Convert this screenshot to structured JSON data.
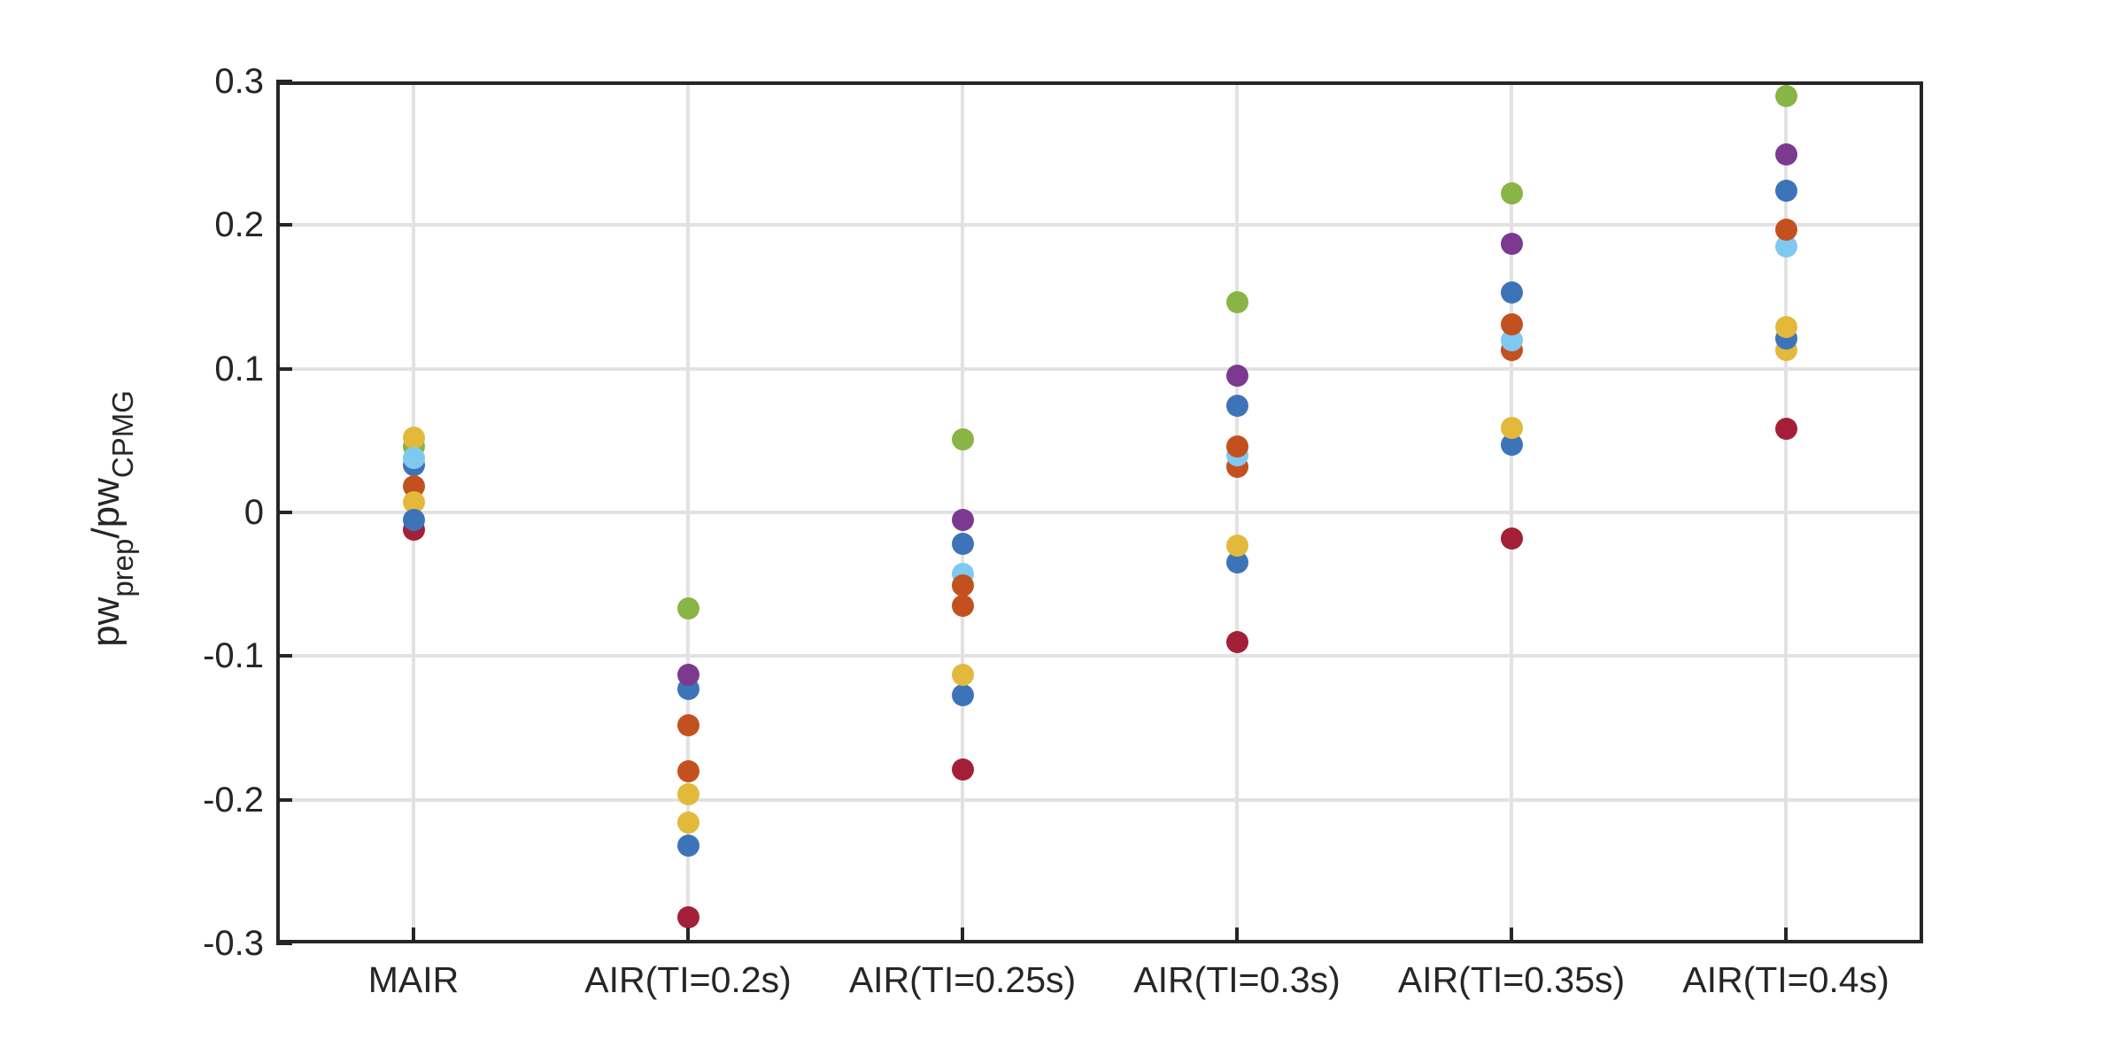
{
  "chart_data": {
    "type": "scatter",
    "title": "",
    "xlabel": "",
    "ylabel_parts": {
      "base1": "pw",
      "sub1": "prep",
      "base2": "/pw",
      "sub2": "CPMG"
    },
    "categories": [
      "MAIR",
      "AIR(TI=0.2s)",
      "AIR(TI=0.25s)",
      "AIR(TI=0.3s)",
      "AIR(TI=0.35s)",
      "AIR(TI=0.4s)"
    ],
    "y_ticks": [
      "0.3",
      "0.2",
      "0.1",
      "0",
      "-0.1",
      "-0.2",
      "-0.3"
    ],
    "ylim": [
      -0.3,
      0.3
    ],
    "grid": true,
    "legend": "none",
    "marker": "filled-circle",
    "colors": {
      "background": "#FFFFFF",
      "axis": "#262626",
      "grid": "#E2E2E2",
      "palette": {
        "blue": "#3D74B9",
        "orange": "#C3511F",
        "yellow": "#E3B93C",
        "purple": "#7B3A90",
        "green": "#89B446",
        "lightblue": "#7FC9F0",
        "maroon": "#A42039"
      }
    },
    "columns": [
      {
        "category": "MAIR",
        "points": [
          {
            "color": "green",
            "value": 0.046
          },
          {
            "color": "blue",
            "value": 0.033
          },
          {
            "color": "maroon",
            "value": -0.012
          },
          {
            "color": "orange",
            "value": 0.018
          },
          {
            "color": "yellow",
            "value": 0.007
          },
          {
            "color": "yellow",
            "value": 0.052
          },
          {
            "color": "lightblue",
            "value": 0.038
          },
          {
            "color": "blue",
            "value": -0.005
          }
        ]
      },
      {
        "category": "AIR(TI=0.2s)",
        "points": [
          {
            "color": "blue",
            "value": -0.123
          },
          {
            "color": "orange",
            "value": -0.148
          },
          {
            "color": "orange",
            "value": -0.18
          },
          {
            "color": "yellow",
            "value": -0.196
          },
          {
            "color": "yellow",
            "value": -0.216
          },
          {
            "color": "blue",
            "value": -0.232
          },
          {
            "color": "maroon",
            "value": -0.282
          },
          {
            "color": "purple",
            "value": -0.113
          },
          {
            "color": "green",
            "value": -0.067
          }
        ]
      },
      {
        "category": "AIR(TI=0.25s)",
        "points": [
          {
            "color": "lightblue",
            "value": -0.043
          },
          {
            "color": "orange",
            "value": -0.051
          },
          {
            "color": "orange",
            "value": -0.065
          },
          {
            "color": "blue",
            "value": -0.127
          },
          {
            "color": "yellow",
            "value": -0.113
          },
          {
            "color": "purple",
            "value": -0.005
          },
          {
            "color": "blue",
            "value": -0.022
          },
          {
            "color": "green",
            "value": 0.051
          },
          {
            "color": "maroon",
            "value": -0.179
          }
        ]
      },
      {
        "category": "AIR(TI=0.3s)",
        "points": [
          {
            "color": "orange",
            "value": 0.032
          },
          {
            "color": "lightblue",
            "value": 0.04
          },
          {
            "color": "orange",
            "value": 0.046
          },
          {
            "color": "blue",
            "value": 0.074
          },
          {
            "color": "purple",
            "value": 0.095
          },
          {
            "color": "green",
            "value": 0.146
          },
          {
            "color": "blue",
            "value": -0.035
          },
          {
            "color": "yellow",
            "value": -0.023
          },
          {
            "color": "maroon",
            "value": -0.09
          }
        ]
      },
      {
        "category": "AIR(TI=0.35s)",
        "points": [
          {
            "color": "orange",
            "value": 0.113
          },
          {
            "color": "lightblue",
            "value": 0.12
          },
          {
            "color": "orange",
            "value": 0.131
          },
          {
            "color": "blue",
            "value": 0.153
          },
          {
            "color": "purple",
            "value": 0.187
          },
          {
            "color": "green",
            "value": 0.222
          },
          {
            "color": "blue",
            "value": 0.047
          },
          {
            "color": "yellow",
            "value": 0.059
          },
          {
            "color": "maroon",
            "value": -0.018
          }
        ]
      },
      {
        "category": "AIR(TI=0.4s)",
        "points": [
          {
            "color": "yellow",
            "value": 0.113
          },
          {
            "color": "blue",
            "value": 0.121
          },
          {
            "color": "yellow",
            "value": 0.129
          },
          {
            "color": "lightblue",
            "value": 0.185
          },
          {
            "color": "orange",
            "value": 0.197
          },
          {
            "color": "blue",
            "value": 0.224
          },
          {
            "color": "purple",
            "value": 0.249
          },
          {
            "color": "green",
            "value": 0.29
          },
          {
            "color": "maroon",
            "value": 0.058
          }
        ]
      }
    ]
  }
}
